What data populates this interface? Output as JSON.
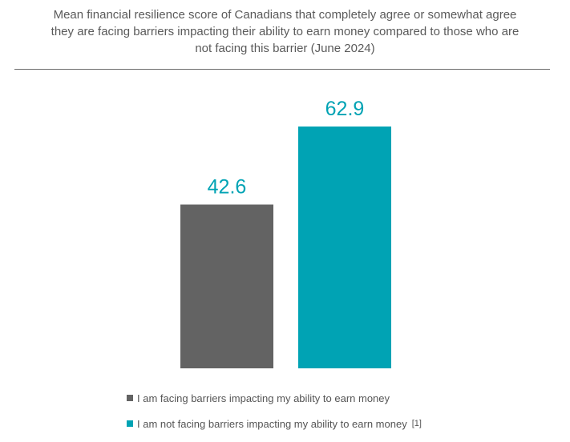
{
  "chart_data": {
    "type": "bar",
    "title_lines": [
      "Mean financial resilience score of Canadians that completely agree or somewhat agree",
      "they are facing barriers impacting their ability to earn money compared to those who are",
      "not facing this barrier (June 2024)"
    ],
    "categories": [
      "I am facing barriers impacting my ability to earn money",
      "I am not facing barriers impacting my ability to earn money"
    ],
    "values": [
      42.6,
      62.9
    ],
    "value_labels": [
      "42.6",
      "62.9"
    ],
    "colors": [
      "#636363",
      "#00a3b4"
    ],
    "legend_placement": "bottom",
    "legend_note": "[1]",
    "xlabel": "",
    "ylabel": "",
    "ylim": [
      0,
      62.9
    ],
    "grid": false
  }
}
